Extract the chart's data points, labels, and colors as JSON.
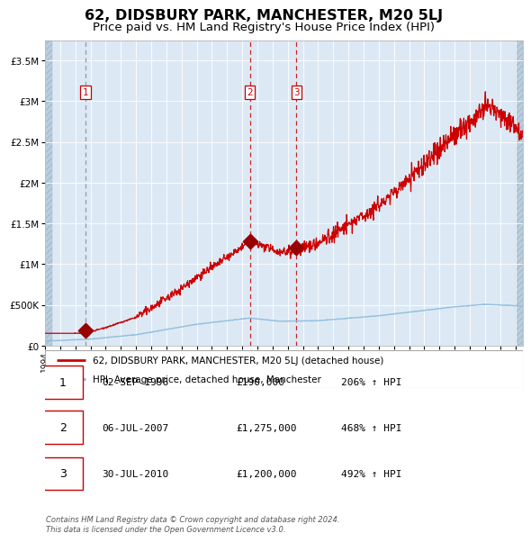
{
  "title": "62, DIDSBURY PARK, MANCHESTER, M20 5LJ",
  "subtitle": "Price paid vs. HM Land Registry's House Price Index (HPI)",
  "title_fontsize": 11.5,
  "subtitle_fontsize": 9.5,
  "background_color": "#dce9f5",
  "plot_bg_color": "#dce9f5",
  "hatch_color": "#b8cfe0",
  "grid_color": "#ffffff",
  "sale_dates_year": [
    1996.67,
    2007.5,
    2010.58
  ],
  "sale_prices": [
    190000,
    1275000,
    1200000
  ],
  "sale_labels": [
    "1",
    "2",
    "3"
  ],
  "legend_line1": "62, DIDSBURY PARK, MANCHESTER, M20 5LJ (detached house)",
  "legend_line2": "HPI: Average price, detached house, Manchester",
  "red_line_color": "#cc0000",
  "blue_line_color": "#8bbcda",
  "marker_color": "#990000",
  "label_box_edgecolor": "#cc0000",
  "footer_text": "Contains HM Land Registry data © Crown copyright and database right 2024.\nThis data is licensed under the Open Government Licence v3.0.",
  "table_entries": [
    {
      "label": "1",
      "date": "02-SEP-1996",
      "price": "£190,000",
      "hpi": "206% ↑ HPI"
    },
    {
      "label": "2",
      "date": "06-JUL-2007",
      "price": "£1,275,000",
      "hpi": "468% ↑ HPI"
    },
    {
      "label": "3",
      "date": "30-JUL-2010",
      "price": "£1,200,000",
      "hpi": "492% ↑ HPI"
    }
  ],
  "ylim": [
    0,
    3750000
  ],
  "yticks": [
    0,
    500000,
    1000000,
    1500000,
    2000000,
    2500000,
    3000000,
    3500000
  ],
  "xlim_start": 1994.0,
  "xlim_end": 2025.5
}
